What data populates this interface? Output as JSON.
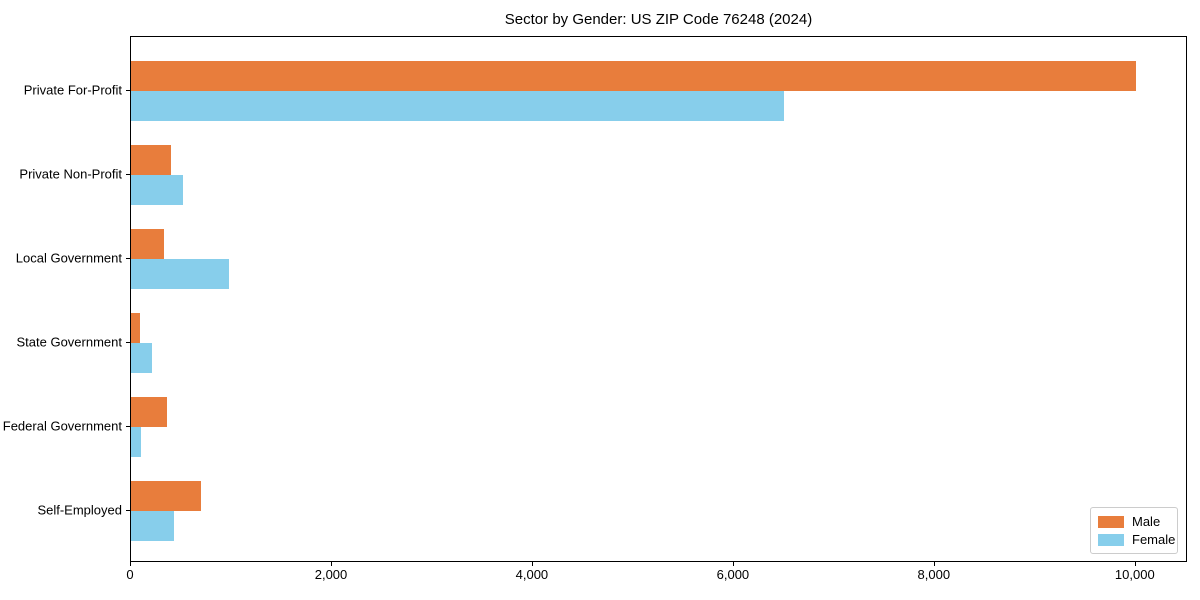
{
  "chart_data": {
    "type": "bar",
    "orientation": "horizontal",
    "title": "Sector by Gender: US ZIP Code 76248 (2024)",
    "xlabel": "",
    "ylabel": "",
    "categories": [
      "Private For-Profit",
      "Private Non-Profit",
      "Local Government",
      "State Government",
      "Federal Government",
      "Self-Employed"
    ],
    "series": [
      {
        "name": "Male",
        "color": "#e87d3c",
        "values": [
          10000,
          400,
          330,
          90,
          360,
          700
        ]
      },
      {
        "name": "Female",
        "color": "#87ceeb",
        "values": [
          6500,
          520,
          970,
          210,
          100,
          430
        ]
      }
    ],
    "xlim": [
      0,
      10500
    ],
    "xticks": [
      0,
      2000,
      4000,
      6000,
      8000,
      10000
    ],
    "xtick_labels": [
      "0",
      "2,000",
      "4,000",
      "6,000",
      "8,000",
      "10,000"
    ],
    "grid": false,
    "legend_position": "lower right"
  },
  "legend": {
    "items": [
      {
        "label": "Male",
        "color": "#e87d3c"
      },
      {
        "label": "Female",
        "color": "#87ceeb"
      }
    ]
  }
}
